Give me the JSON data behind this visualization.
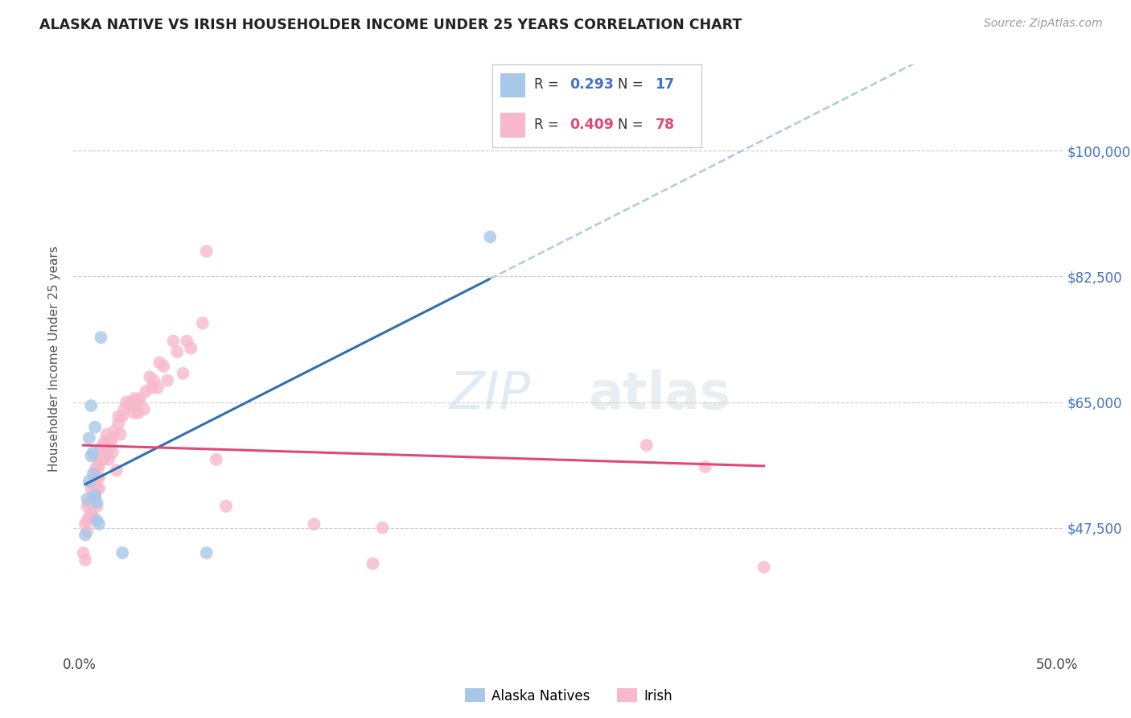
{
  "title": "ALASKA NATIVE VS IRISH HOUSEHOLDER INCOME UNDER 25 YEARS CORRELATION CHART",
  "source": "Source: ZipAtlas.com",
  "ylabel": "Householder Income Under 25 years",
  "xlim": [
    -0.003,
    0.503
  ],
  "ylim": [
    30000,
    112000
  ],
  "ytick_vals": [
    47500,
    65000,
    82500,
    100000
  ],
  "ytick_labels": [
    "$47,500",
    "$65,000",
    "$82,500",
    "$100,000"
  ],
  "xtick_vals": [
    0.0,
    0.5
  ],
  "xtick_labels": [
    "0.0%",
    "50.0%"
  ],
  "alaska_color": "#a8c8e8",
  "irish_color": "#f8b8cc",
  "trendline_alaska_color": "#3070b0",
  "trendline_irish_color": "#e04878",
  "trendline_ext_color": "#a8cce0",
  "alaska_R": "0.293",
  "alaska_N": "17",
  "irish_R": "0.409",
  "irish_N": "78",
  "alaska_x": [
    0.003,
    0.004,
    0.005,
    0.005,
    0.006,
    0.006,
    0.007,
    0.007,
    0.008,
    0.008,
    0.009,
    0.009,
    0.01,
    0.011,
    0.022,
    0.065,
    0.21
  ],
  "alaska_y": [
    46500,
    51500,
    60000,
    54000,
    64500,
    57500,
    58000,
    55000,
    61500,
    52000,
    51000,
    48500,
    48000,
    74000,
    44000,
    44000,
    88000
  ],
  "irish_x": [
    0.002,
    0.003,
    0.003,
    0.004,
    0.004,
    0.004,
    0.005,
    0.005,
    0.006,
    0.006,
    0.006,
    0.007,
    0.007,
    0.007,
    0.007,
    0.008,
    0.008,
    0.008,
    0.009,
    0.009,
    0.009,
    0.009,
    0.01,
    0.01,
    0.01,
    0.01,
    0.011,
    0.011,
    0.012,
    0.012,
    0.013,
    0.013,
    0.014,
    0.014,
    0.015,
    0.015,
    0.016,
    0.017,
    0.017,
    0.018,
    0.019,
    0.02,
    0.02,
    0.021,
    0.022,
    0.023,
    0.024,
    0.026,
    0.027,
    0.028,
    0.028,
    0.03,
    0.03,
    0.031,
    0.033,
    0.034,
    0.036,
    0.037,
    0.038,
    0.04,
    0.041,
    0.043,
    0.045,
    0.048,
    0.05,
    0.053,
    0.055,
    0.057,
    0.063,
    0.065,
    0.07,
    0.075,
    0.12,
    0.15,
    0.155,
    0.29,
    0.32,
    0.35
  ],
  "irish_y": [
    44000,
    48000,
    43000,
    50500,
    48500,
    47000,
    51000,
    49000,
    53000,
    51000,
    49500,
    53500,
    52000,
    51000,
    49000,
    55500,
    54000,
    52000,
    56000,
    54500,
    53000,
    50500,
    57000,
    56000,
    54500,
    53000,
    58500,
    57000,
    59000,
    57000,
    59500,
    57500,
    60500,
    58500,
    58500,
    57000,
    59500,
    60000,
    58000,
    61000,
    55500,
    63000,
    62000,
    60500,
    63000,
    64000,
    65000,
    64500,
    65000,
    65500,
    63500,
    65000,
    63500,
    65500,
    64000,
    66500,
    68500,
    67000,
    68000,
    67000,
    70500,
    70000,
    68000,
    73500,
    72000,
    69000,
    73500,
    72500,
    76000,
    86000,
    57000,
    50500,
    48000,
    42500,
    47500,
    59000,
    56000,
    42000
  ]
}
